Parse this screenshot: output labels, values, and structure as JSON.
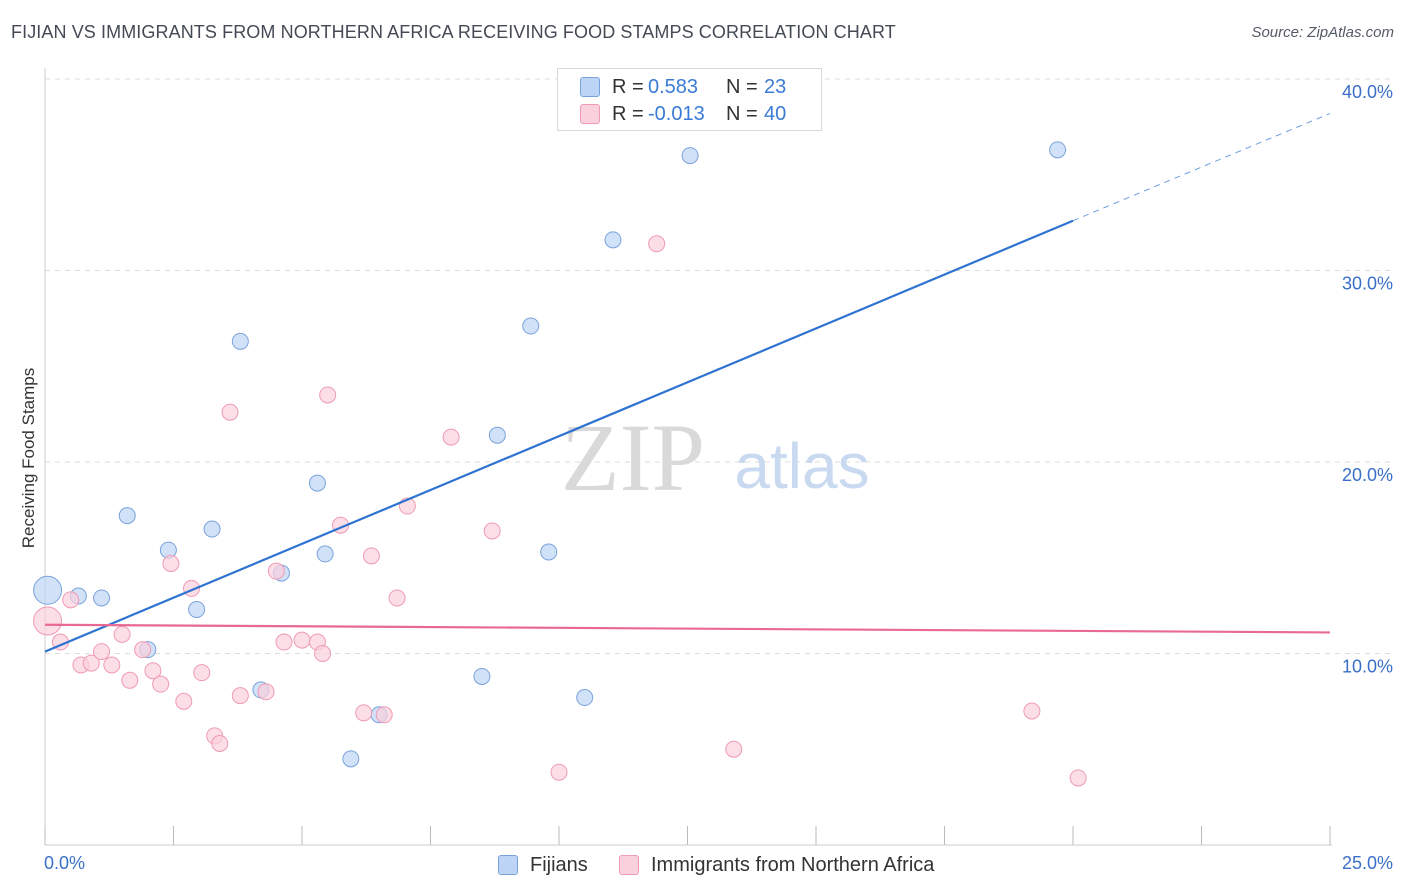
{
  "header": {
    "title": "FIJIAN VS IMMIGRANTS FROM NORTHERN AFRICA RECEIVING FOOD STAMPS CORRELATION CHART",
    "source": "Source: ZipAtlas.com"
  },
  "legend": {
    "rows": [
      {
        "r_label": "R =",
        "r_value": "0.583",
        "n_label": "N =",
        "n_value": "23"
      },
      {
        "r_label": "R =",
        "r_value": "-0.013",
        "n_label": "N =",
        "n_value": "40"
      }
    ]
  },
  "watermark": {
    "zip": "ZIP",
    "atlas": "atlas"
  },
  "colors": {
    "fijian_fill": "#bcd4f5",
    "fijian_stroke": "#7aa3db",
    "fijian_line": "#2f73d1",
    "immig_fill": "#fbd0dd",
    "immig_stroke": "#ef9bb4",
    "immig_line": "#e86a93",
    "axis_label": "#3a6fc7",
    "grid": "#dddddd"
  },
  "chart_data": {
    "type": "scatter",
    "title": "FIJIAN VS IMMIGRANTS FROM NORTHERN AFRICA RECEIVING FOOD STAMPS CORRELATION CHART",
    "xlabel": "",
    "ylabel": "Receiving Food Stamps",
    "xlim": [
      0,
      25
    ],
    "ylim": [
      0,
      40
    ],
    "x_tick_labels": [
      "0.0%",
      "25.0%"
    ],
    "y_ticks": [
      10,
      20,
      30,
      40
    ],
    "y_tick_labels": [
      "10.0%",
      "20.0%",
      "30.0%",
      "40.0%"
    ],
    "series": [
      {
        "name": "Fijians",
        "points": [
          {
            "x": 0.05,
            "y": 13.3,
            "big": true
          },
          {
            "x": 0.65,
            "y": 13.0
          },
          {
            "x": 1.1,
            "y": 12.9
          },
          {
            "x": 1.6,
            "y": 17.2
          },
          {
            "x": 2.0,
            "y": 10.2
          },
          {
            "x": 2.4,
            "y": 15.4
          },
          {
            "x": 2.95,
            "y": 12.3
          },
          {
            "x": 3.25,
            "y": 16.5
          },
          {
            "x": 3.8,
            "y": 26.3
          },
          {
            "x": 4.2,
            "y": 8.1
          },
          {
            "x": 4.6,
            "y": 14.2
          },
          {
            "x": 5.3,
            "y": 18.9
          },
          {
            "x": 5.45,
            "y": 15.2
          },
          {
            "x": 5.95,
            "y": 4.5
          },
          {
            "x": 6.5,
            "y": 6.8
          },
          {
            "x": 8.5,
            "y": 8.8
          },
          {
            "x": 8.8,
            "y": 21.4
          },
          {
            "x": 9.45,
            "y": 27.1
          },
          {
            "x": 9.8,
            "y": 15.3
          },
          {
            "x": 10.5,
            "y": 7.7
          },
          {
            "x": 11.05,
            "y": 31.6
          },
          {
            "x": 12.55,
            "y": 36.0
          },
          {
            "x": 19.7,
            "y": 36.3
          }
        ],
        "trend": {
          "x0": 0.0,
          "y0": 10.1,
          "x1": 20.0,
          "y1": 32.6,
          "dash_x1": 25.0,
          "dash_y1": 38.2
        }
      },
      {
        "name": "Immigrants from Northern Africa",
        "points": [
          {
            "x": 0.05,
            "y": 11.7,
            "big": true
          },
          {
            "x": 0.3,
            "y": 10.6
          },
          {
            "x": 0.5,
            "y": 12.8
          },
          {
            "x": 0.7,
            "y": 9.4
          },
          {
            "x": 0.9,
            "y": 9.5
          },
          {
            "x": 1.1,
            "y": 10.1
          },
          {
            "x": 1.3,
            "y": 9.4
          },
          {
            "x": 1.5,
            "y": 11.0
          },
          {
            "x": 1.65,
            "y": 8.6
          },
          {
            "x": 1.9,
            "y": 10.2
          },
          {
            "x": 2.1,
            "y": 9.1
          },
          {
            "x": 2.25,
            "y": 8.4
          },
          {
            "x": 2.45,
            "y": 14.7
          },
          {
            "x": 2.7,
            "y": 7.5
          },
          {
            "x": 2.85,
            "y": 13.4
          },
          {
            "x": 3.05,
            "y": 9.0
          },
          {
            "x": 3.3,
            "y": 5.7
          },
          {
            "x": 3.4,
            "y": 5.3
          },
          {
            "x": 3.6,
            "y": 22.6
          },
          {
            "x": 3.8,
            "y": 7.8
          },
          {
            "x": 4.3,
            "y": 8.0
          },
          {
            "x": 4.5,
            "y": 14.3
          },
          {
            "x": 4.65,
            "y": 10.6
          },
          {
            "x": 5.0,
            "y": 10.7
          },
          {
            "x": 5.3,
            "y": 10.6
          },
          {
            "x": 5.4,
            "y": 10.0
          },
          {
            "x": 5.5,
            "y": 23.5
          },
          {
            "x": 5.75,
            "y": 16.7
          },
          {
            "x": 6.2,
            "y": 6.9
          },
          {
            "x": 6.35,
            "y": 15.1
          },
          {
            "x": 6.6,
            "y": 6.8
          },
          {
            "x": 6.85,
            "y": 12.9
          },
          {
            "x": 7.05,
            "y": 17.7
          },
          {
            "x": 7.9,
            "y": 21.3
          },
          {
            "x": 8.7,
            "y": 16.4
          },
          {
            "x": 10.0,
            "y": 3.8
          },
          {
            "x": 11.9,
            "y": 31.4
          },
          {
            "x": 13.4,
            "y": 5.0
          },
          {
            "x": 19.2,
            "y": 7.0
          },
          {
            "x": 20.1,
            "y": 3.5
          }
        ],
        "trend": {
          "x0": 0.0,
          "y0": 11.5,
          "x1": 25.0,
          "y1": 11.1
        }
      }
    ],
    "legend": [
      "Fijians",
      "Immigrants from Northern Africa"
    ]
  }
}
